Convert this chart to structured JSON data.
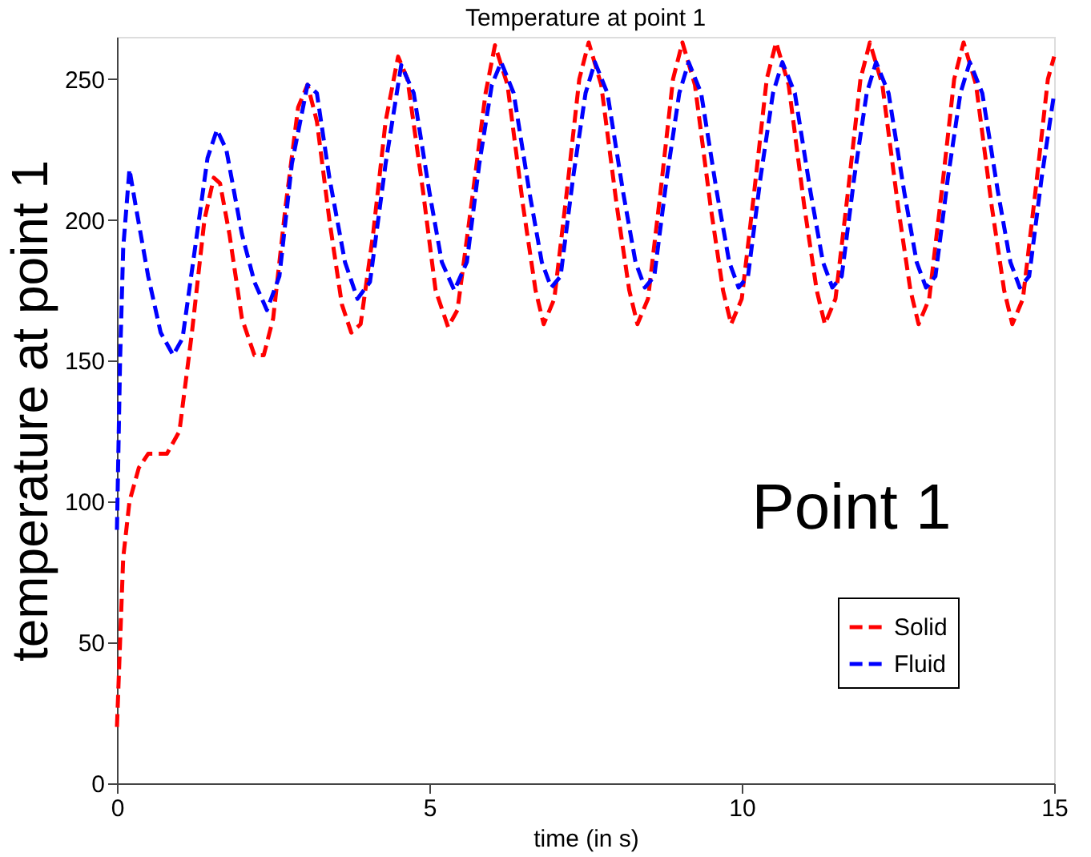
{
  "chart_data": {
    "type": "line",
    "title": "Temperature at point 1",
    "xlabel": "time (in s)",
    "ylabel": "temperature at point 1",
    "annotations": [
      "Point 1"
    ],
    "xlim": [
      0,
      15
    ],
    "ylim": [
      0,
      265
    ],
    "xticks": [
      0,
      5,
      10,
      15
    ],
    "yticks": [
      0,
      50,
      100,
      150,
      200,
      250
    ],
    "grid": false,
    "legend": "bottom right",
    "line_style": "dashed",
    "series": [
      {
        "name": "Solid",
        "color": "#ff0000",
        "x": [
          0,
          0.05,
          0.1,
          0.2,
          0.35,
          0.5,
          0.8,
          1.0,
          1.2,
          1.4,
          1.55,
          1.65,
          1.8,
          2.0,
          2.2,
          2.35,
          2.5,
          2.7,
          2.9,
          3.05,
          3.2,
          3.4,
          3.6,
          3.75,
          3.9,
          4.1,
          4.3,
          4.5,
          4.65,
          4.9,
          5.1,
          5.3,
          5.45,
          5.7,
          5.9,
          6.05,
          6.25,
          6.5,
          6.7,
          6.83,
          7.0,
          7.2,
          7.4,
          7.55,
          7.75,
          8.0,
          8.2,
          8.33,
          8.5,
          8.7,
          8.9,
          9.05,
          9.25,
          9.5,
          9.7,
          9.83,
          10.0,
          10.2,
          10.4,
          10.55,
          10.75,
          11.0,
          11.2,
          11.33,
          11.5,
          11.7,
          11.9,
          12.05,
          12.25,
          12.5,
          12.7,
          12.83,
          13.0,
          13.2,
          13.4,
          13.55,
          13.75,
          14.0,
          14.2,
          14.33,
          14.5,
          14.7,
          14.9,
          15.0
        ],
        "values": [
          20,
          50,
          80,
          100,
          112,
          117,
          117,
          125,
          160,
          200,
          215,
          213,
          195,
          165,
          152,
          152,
          165,
          205,
          240,
          248,
          235,
          200,
          170,
          160,
          163,
          195,
          235,
          258,
          250,
          210,
          175,
          162,
          168,
          210,
          245,
          262,
          248,
          205,
          175,
          163,
          172,
          210,
          250,
          263,
          248,
          205,
          175,
          163,
          172,
          210,
          250,
          263,
          248,
          205,
          175,
          163,
          172,
          210,
          250,
          263,
          248,
          205,
          175,
          163,
          172,
          210,
          250,
          263,
          248,
          205,
          175,
          163,
          172,
          210,
          250,
          263,
          248,
          205,
          175,
          163,
          172,
          210,
          250,
          258
        ]
      },
      {
        "name": "Fluid",
        "color": "#0000ff",
        "x": [
          0,
          0.05,
          0.1,
          0.2,
          0.3,
          0.5,
          0.7,
          0.9,
          1.05,
          1.25,
          1.45,
          1.6,
          1.75,
          2.0,
          2.2,
          2.4,
          2.6,
          2.8,
          3.05,
          3.2,
          3.4,
          3.65,
          3.85,
          4.05,
          4.3,
          4.55,
          4.75,
          5.0,
          5.2,
          5.4,
          5.6,
          5.8,
          6.0,
          6.15,
          6.35,
          6.6,
          6.8,
          6.95,
          7.1,
          7.3,
          7.5,
          7.65,
          7.85,
          8.1,
          8.3,
          8.45,
          8.6,
          8.8,
          9.0,
          9.15,
          9.35,
          9.6,
          9.8,
          9.95,
          10.1,
          10.3,
          10.5,
          10.65,
          10.85,
          11.1,
          11.3,
          11.45,
          11.6,
          11.8,
          12.0,
          12.15,
          12.35,
          12.6,
          12.8,
          12.95,
          13.1,
          13.3,
          13.5,
          13.65,
          13.85,
          14.1,
          14.3,
          14.45,
          14.6,
          14.8,
          15.0
        ],
        "values": [
          90,
          150,
          190,
          218,
          205,
          180,
          160,
          152,
          158,
          190,
          222,
          232,
          225,
          195,
          178,
          168,
          180,
          220,
          248,
          245,
          215,
          185,
          172,
          178,
          220,
          255,
          245,
          210,
          185,
          175,
          185,
          220,
          248,
          256,
          245,
          210,
          185,
          176,
          180,
          215,
          245,
          256,
          245,
          210,
          185,
          176,
          180,
          215,
          245,
          256,
          245,
          210,
          185,
          176,
          180,
          215,
          245,
          256,
          245,
          210,
          185,
          176,
          180,
          215,
          245,
          256,
          245,
          210,
          185,
          176,
          180,
          215,
          245,
          256,
          245,
          210,
          185,
          176,
          180,
          215,
          245
        ]
      }
    ]
  }
}
